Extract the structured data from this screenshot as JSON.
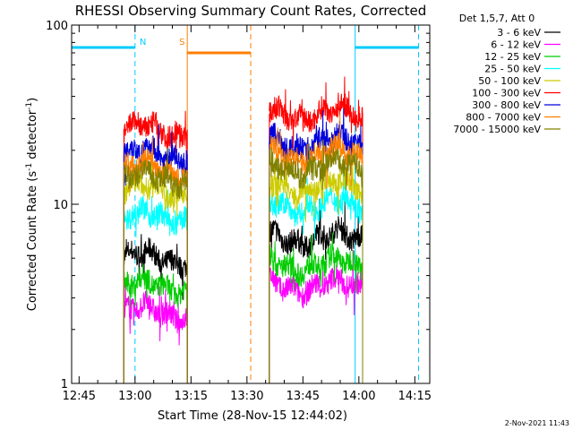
{
  "chart_data": {
    "type": "line",
    "title": "RHESSI Observing Summary Count Rates, Corrected",
    "xlabel": "Start Time (28-Nov-15 12:44:02)",
    "ylabel_main": "Corrected Count Rate (s",
    "ylabel_sup1": "-1",
    "ylabel_mid": " detector",
    "ylabel_sup2": "-1",
    "ylabel_end": ")",
    "y_scale": "log",
    "ylim": [
      1,
      100
    ],
    "xlim_minutes": [
      -1,
      95
    ],
    "x_tick_labels": [
      "12:45",
      "13:00",
      "13:15",
      "13:30",
      "13:45",
      "14:00",
      "14:15"
    ],
    "x_tick_minutes": [
      1,
      16,
      31,
      46,
      61,
      76,
      91
    ],
    "y_tick_labels": [
      "1",
      "10",
      "100"
    ],
    "y_tick_values": [
      1,
      10,
      100
    ],
    "legend_header": "Det 1,5,7, Att 0",
    "legend_position": "right",
    "footer_date": "2-Nov-2021 11:43",
    "segments": [
      [
        13,
        30
      ],
      [
        52,
        77
      ]
    ],
    "series": [
      {
        "name": "3 - 6 keV",
        "color": "#000000",
        "levels": [
          5.0,
          6.5
        ]
      },
      {
        "name": "6 - 12 keV",
        "color": "#ff00ff",
        "levels": [
          2.5,
          3.5
        ]
      },
      {
        "name": "12 - 25 keV",
        "color": "#00cc00",
        "levels": [
          3.5,
          4.6
        ]
      },
      {
        "name": "25 - 50 keV",
        "color": "#00ffff",
        "levels": [
          8.5,
          9.8
        ]
      },
      {
        "name": "50 - 100 keV",
        "color": "#cccc00",
        "levels": [
          12.0,
          12.5
        ]
      },
      {
        "name": "100 - 300 keV",
        "color": "#ff0000",
        "levels": [
          26.0,
          32.0
        ]
      },
      {
        "name": "300 - 800 keV",
        "color": "#0000dd",
        "levels": [
          19.0,
          22.0
        ]
      },
      {
        "name": "800 - 7000 keV",
        "color": "#ff7f00",
        "levels": [
          15.5,
          19.0
        ]
      },
      {
        "name": "7000 - 15000 keV",
        "color": "#808000",
        "levels": [
          14.0,
          16.0
        ]
      }
    ],
    "annotations": [
      {
        "label": "N",
        "color": "#00ccff",
        "solid_minutes": [
          -1,
          16
        ],
        "dashed_minute": 16,
        "level": 75
      },
      {
        "label": "S",
        "color": "#ff7f00",
        "solid_minutes": [
          30,
          47
        ],
        "dashed_minute": 47,
        "level": 70
      },
      {
        "label": "",
        "color": "#00ccff",
        "solid_minutes": [
          75,
          92
        ],
        "dashed_minute": 92,
        "level": 75
      }
    ]
  }
}
